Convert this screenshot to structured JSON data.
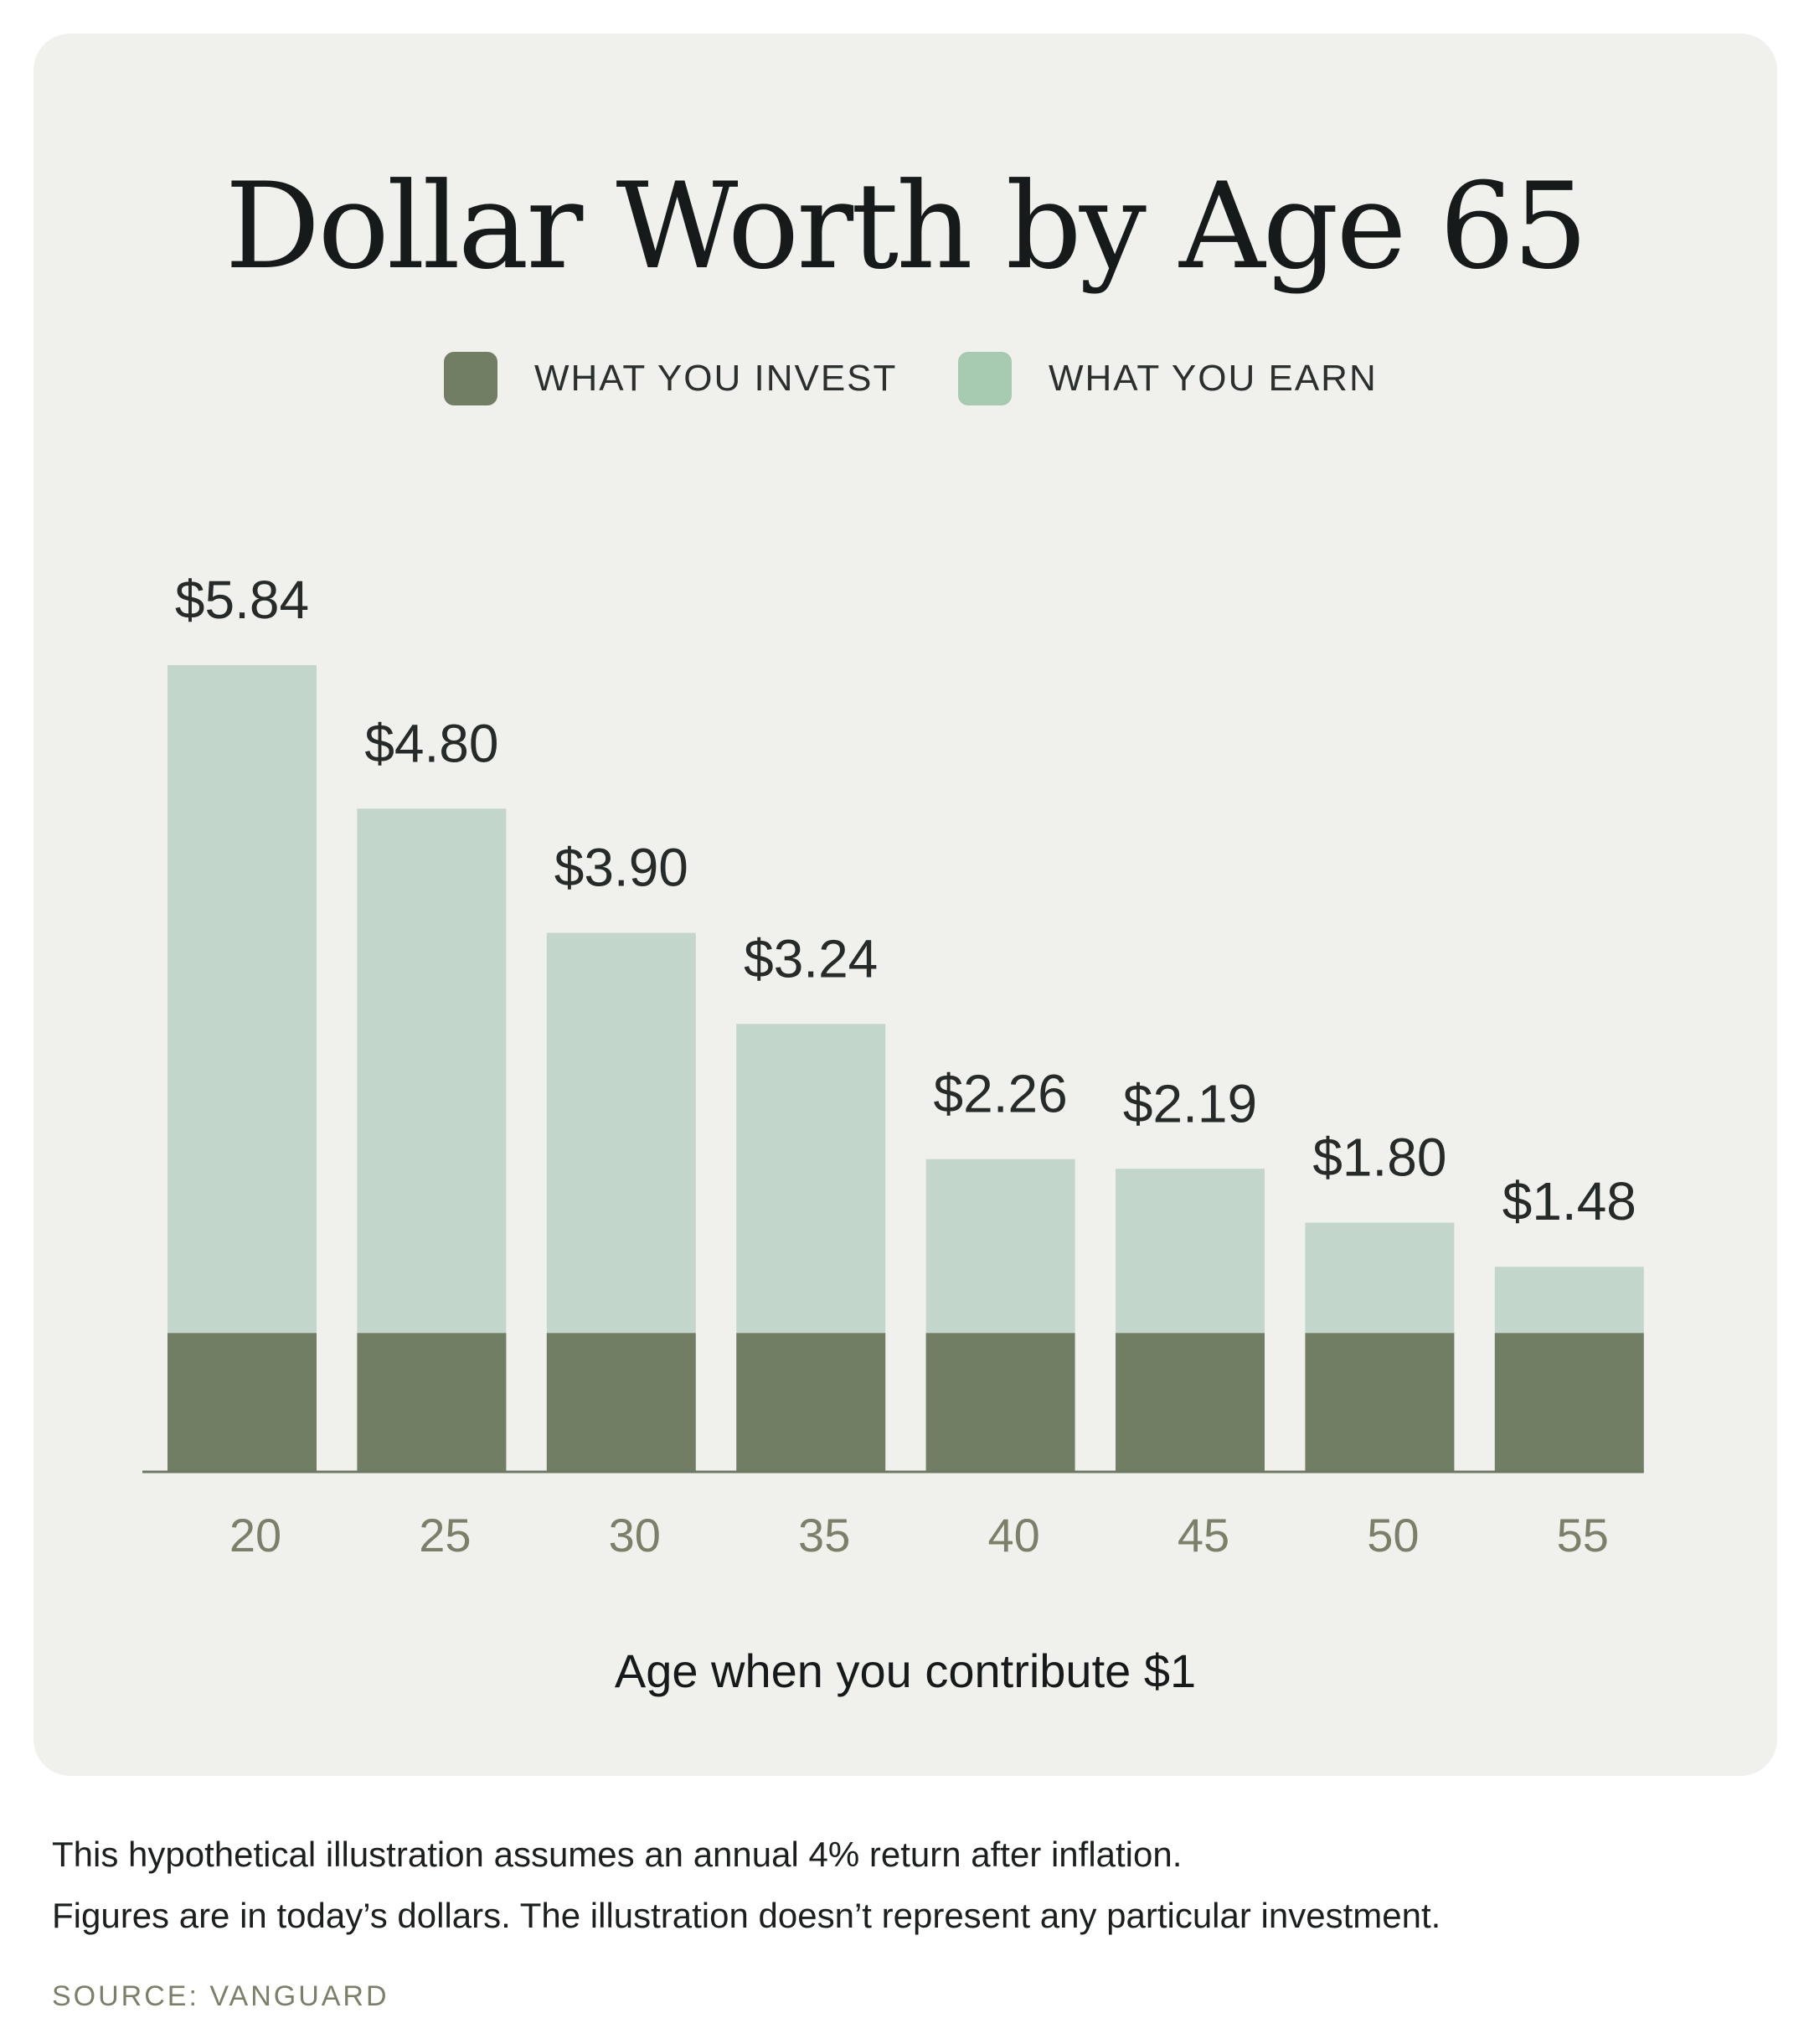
{
  "colors": {
    "invest": "#717e64",
    "earn_bar": "#c2d6cb",
    "earn_legend": "#a6cbb0",
    "value_label": "#262a28",
    "tick_label": "#7b8068",
    "axis": "#6d7962"
  },
  "chart_data": {
    "type": "bar",
    "title": "Dollar Worth by Age 65",
    "xlabel": "Age when you contribute $1",
    "ylabel": "",
    "categories": [
      "20",
      "25",
      "30",
      "35",
      "40",
      "45",
      "50",
      "55"
    ],
    "series": [
      {
        "name": "WHAT YOU INVEST",
        "values": [
          1,
          1,
          1,
          1,
          1,
          1,
          1,
          1
        ]
      },
      {
        "name": "WHAT YOU EARN",
        "values": [
          4.84,
          3.8,
          2.9,
          2.24,
          1.26,
          1.19,
          0.8,
          0.48
        ]
      }
    ],
    "totals": [
      5.84,
      4.8,
      3.9,
      3.24,
      2.26,
      2.19,
      1.8,
      1.48
    ],
    "value_labels": [
      "$5.84",
      "$4.80",
      "$3.90",
      "$3.24",
      "$2.26",
      "$2.19",
      "$1.80",
      "$1.48"
    ],
    "stacked": true,
    "ylim": [
      0,
      5.84
    ],
    "grid": false,
    "legend_position": "top-center"
  },
  "notes": [
    "This hypothetical illustration assumes an annual 4% return after inflation.",
    "Figures are in today’s dollars. The illustration doesn’t represent any particular investment."
  ],
  "source": "SOURCE: VANGUARD"
}
